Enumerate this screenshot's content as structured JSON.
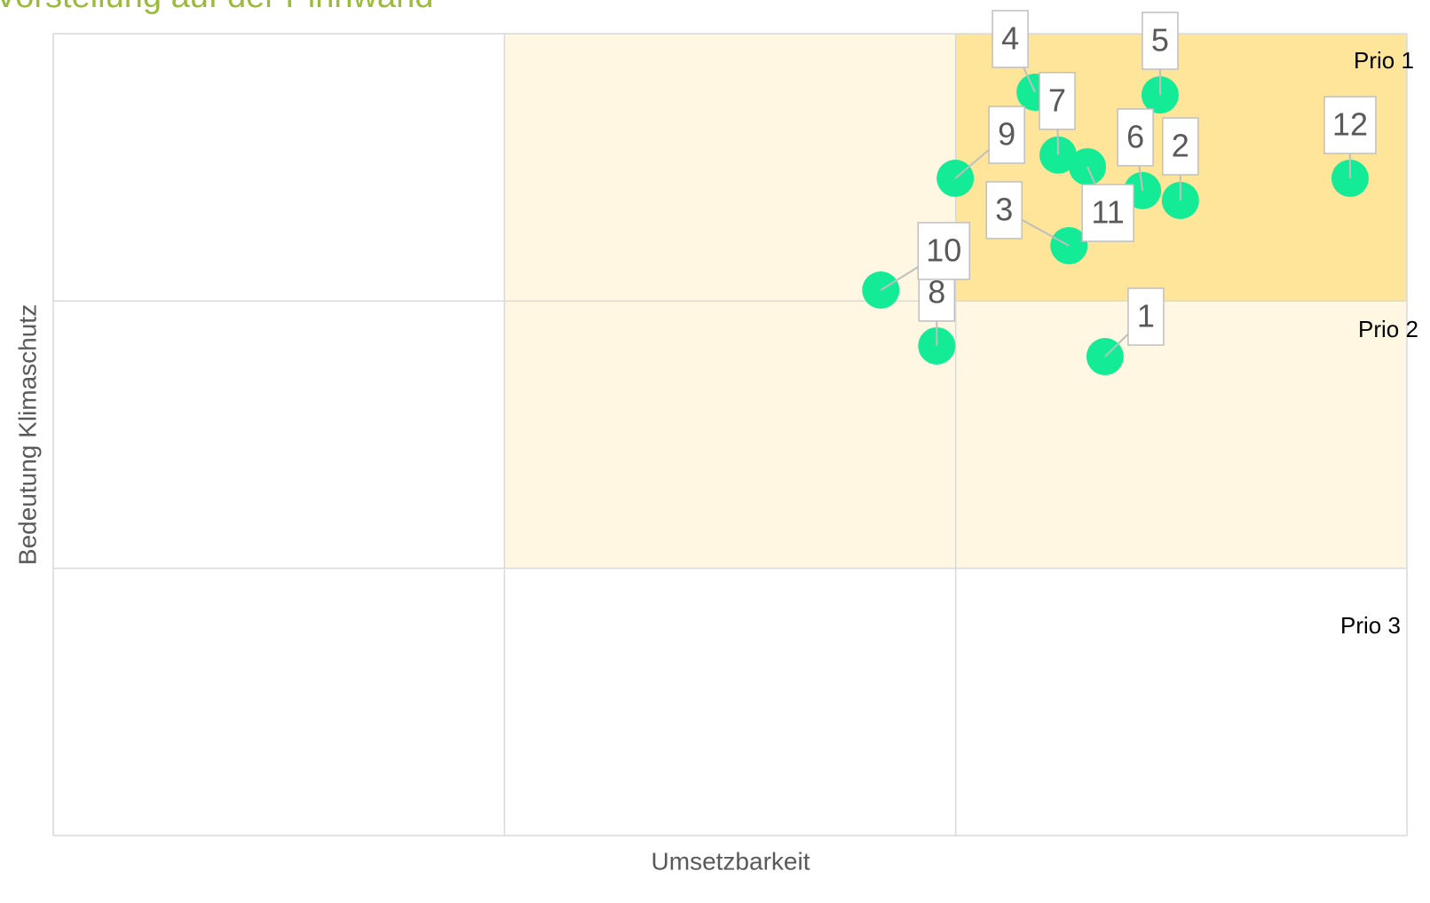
{
  "chart_data": {
    "type": "scatter",
    "title": "Vorstellung auf der Pinnwand",
    "xlabel": "Umsetzbarkeit",
    "ylabel": "Bedeutung Klimaschutz",
    "xlim": [
      0,
      3
    ],
    "ylim": [
      0,
      3
    ],
    "xticks": [
      0,
      1,
      2,
      3
    ],
    "yticks": [
      0,
      1,
      2,
      3
    ],
    "grid": true,
    "zones": [
      {
        "label": "Prio 2",
        "color": "#fff7e1",
        "x": [
          1,
          3
        ],
        "y": [
          1,
          3
        ]
      },
      {
        "label": "Prio 1",
        "color": "#ffe599",
        "x": [
          2,
          3
        ],
        "y": [
          2,
          3
        ]
      },
      {
        "label": "Prio 3"
      }
    ],
    "series": [
      {
        "color": "#14eb96",
        "x": [
          2.331,
          2.498,
          2.251,
          2.176,
          2.453,
          2.414,
          2.227,
          1.958,
          1.999,
          1.834,
          2.292,
          2.874
        ],
        "values": [
          1.792,
          2.376,
          2.207,
          2.781,
          2.771,
          2.413,
          2.546,
          1.832,
          2.459,
          2.041,
          2.502,
          2.459
        ],
        "point_labels": [
          1,
          2,
          3,
          4,
          5,
          6,
          7,
          8,
          9,
          10,
          11,
          12
        ]
      }
    ]
  }
}
